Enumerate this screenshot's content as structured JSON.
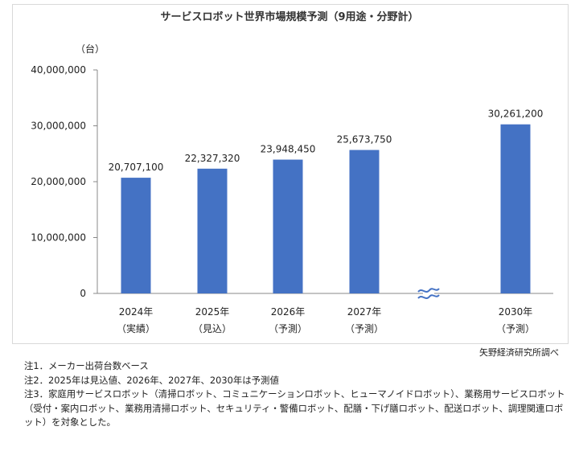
{
  "chart_data": {
    "type": "bar",
    "title": "サービスロボット世界市場規模予測（9用途・分野計）",
    "ylabel": "（台）",
    "ylim": [
      0,
      40000000
    ],
    "yticks": [
      "0",
      "10,000,000",
      "20,000,000",
      "30,000,000",
      "40,000,000"
    ],
    "ytick_values": [
      0,
      10000000,
      20000000,
      30000000,
      40000000
    ],
    "categories": [
      {
        "year": "2024年",
        "sub": "（実績）"
      },
      {
        "year": "2025年",
        "sub": "（見込）"
      },
      {
        "year": "2026年",
        "sub": "（予測）"
      },
      {
        "year": "2027年",
        "sub": "（予測）"
      },
      {
        "year": "2030年",
        "sub": "（予測）"
      }
    ],
    "values": [
      20707100,
      22327320,
      23948450,
      25673750,
      30261200
    ],
    "labels": [
      "20,707,100",
      "22,327,320",
      "23,948,450",
      "25,673,750",
      "30,261,200"
    ],
    "bar_color": "#4472c4",
    "axis_break": true
  },
  "source": "矢野経済研究所調べ",
  "notes": [
    "注1．メーカー出荷台数ベース",
    "注2．2025年は見込値、2026年、2027年、2030年は予測値",
    "注3．家庭用サービスロボット（清掃ロボット、コミュニケーションロボット、ヒューマノイドロボット）、業務用サービスロボット（受付・案内ロボット、業務用清掃ロボット、セキュリティ・警備ロボット、配膳・下げ膳ロボット、配送ロボット、調理関連ロボット）を対象とした。"
  ]
}
